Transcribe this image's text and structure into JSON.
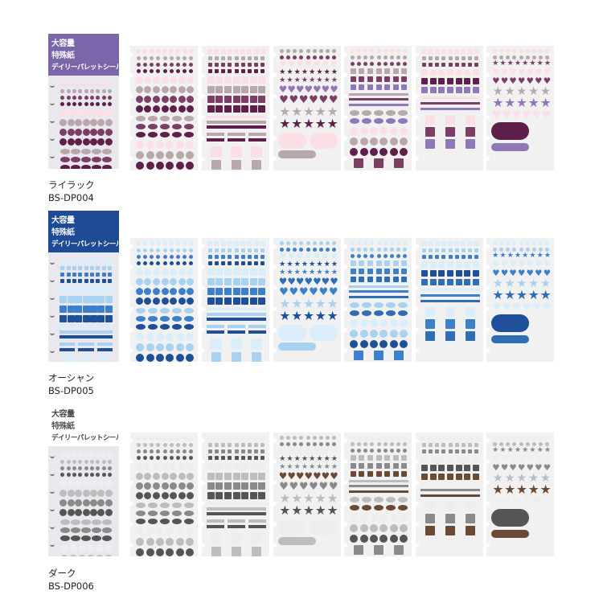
{
  "package": {
    "line1": "大容量",
    "line2": "特殊紙",
    "line3": "デイリーパレットシール"
  },
  "products": [
    {
      "name": "ライラック",
      "code": "BS-DP004",
      "header_color": "#7a66a8",
      "palette": [
        "#fbdfe5",
        "#b8a8ac",
        "#7d3e66",
        "#5e1f4a",
        "#8f78b8",
        "#c9b6d6"
      ]
    },
    {
      "name": "オーシャン",
      "code": "BS-DP005",
      "header_color": "#1f4b94",
      "palette": [
        "#d9eefa",
        "#a8d2f0",
        "#3c7fcb",
        "#1e4f98",
        "#2f6db5",
        "#6fa6d8"
      ]
    },
    {
      "name": "ダーク",
      "code": "BS-DP006",
      "header_color": "#ffffff",
      "palette": [
        "#eeeeee",
        "#bdbdbd",
        "#8a8a8a",
        "#555555",
        "#6b4a35",
        "#c9b49e"
      ]
    }
  ]
}
